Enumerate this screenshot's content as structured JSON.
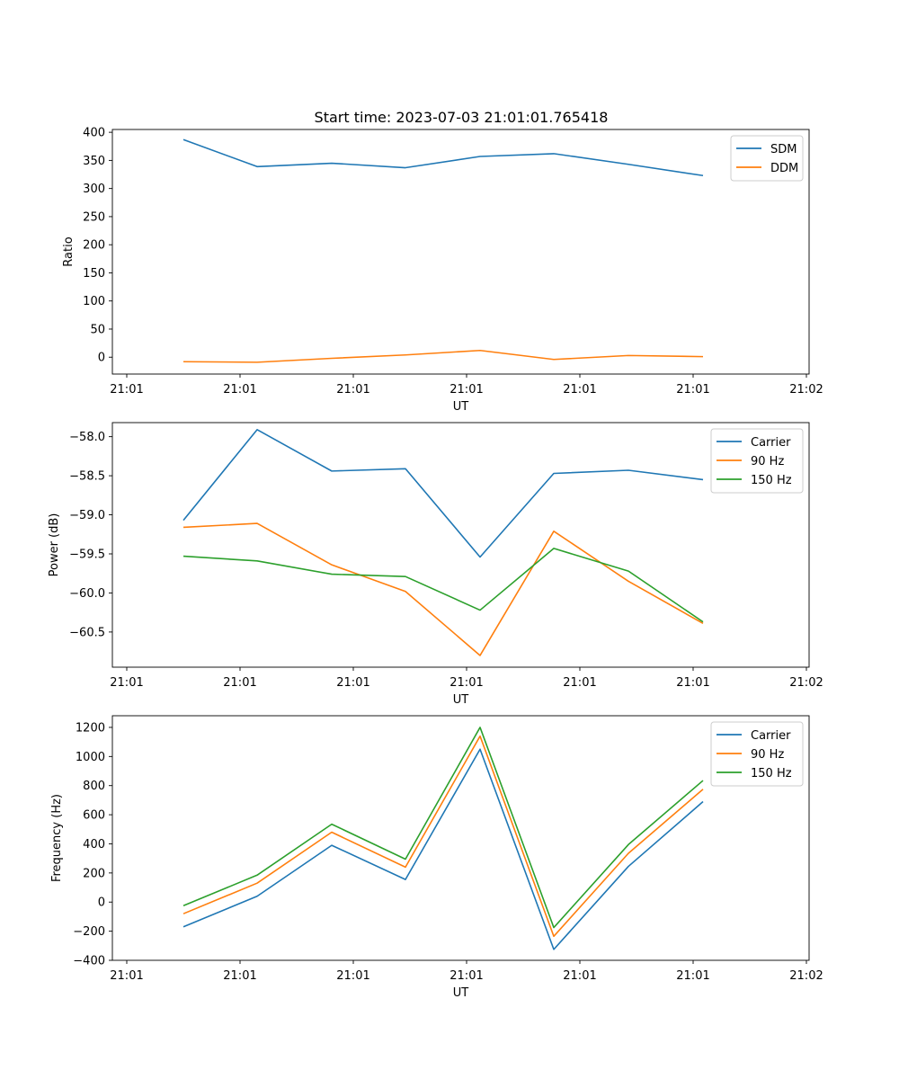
{
  "chart_data": [
    {
      "type": "line",
      "title": "Start time: 2023-07-03 21:01:01.765418",
      "xlabel": "UT",
      "ylabel": "Ratio",
      "xtick_labels": [
        "21:01",
        "21:01",
        "21:01",
        "21:01",
        "21:01",
        "21:01",
        "21:02"
      ],
      "ylim": [
        -30,
        405
      ],
      "yticks": [
        0,
        50,
        100,
        150,
        200,
        250,
        300,
        350,
        400
      ],
      "ytick_labels": [
        "0",
        "50",
        "100",
        "150",
        "200",
        "250",
        "300",
        "350",
        "400"
      ],
      "grid": false,
      "legend_position": "top-right",
      "series": [
        {
          "name": "SDM",
          "color": "#1f77b4",
          "values": [
            387,
            339,
            345,
            337,
            357,
            362,
            343,
            323
          ]
        },
        {
          "name": "DDM",
          "color": "#ff7f0e",
          "values": [
            -8,
            -9,
            -2,
            4,
            12,
            -4,
            3,
            1
          ]
        }
      ]
    },
    {
      "type": "line",
      "title": "",
      "xlabel": "UT",
      "ylabel": "Power (dB)",
      "xtick_labels": [
        "21:01",
        "21:01",
        "21:01",
        "21:01",
        "21:01",
        "21:01",
        "21:02"
      ],
      "ylim": [
        -60.95,
        -57.82
      ],
      "yticks": [
        -58.0,
        -58.5,
        -59.0,
        -59.5,
        -60.0,
        -60.5
      ],
      "ytick_labels": [
        "−58.0",
        "−58.5",
        "−59.0",
        "−59.5",
        "−60.0",
        "−60.5"
      ],
      "grid": false,
      "legend_position": "top-right",
      "series": [
        {
          "name": "Carrier",
          "color": "#1f77b4",
          "values": [
            -59.07,
            -57.91,
            -58.44,
            -58.41,
            -59.54,
            -58.47,
            -58.43,
            -58.55
          ]
        },
        {
          "name": "90 Hz",
          "color": "#ff7f0e",
          "values": [
            -59.16,
            -59.11,
            -59.64,
            -59.98,
            -60.8,
            -59.21,
            -59.85,
            -60.39
          ]
        },
        {
          "name": "150 Hz",
          "color": "#2ca02c",
          "values": [
            -59.53,
            -59.59,
            -59.76,
            -59.79,
            -60.22,
            -59.43,
            -59.72,
            -60.37
          ]
        }
      ]
    },
    {
      "type": "line",
      "title": "",
      "xlabel": "UT",
      "ylabel": "Frequency (Hz)",
      "xtick_labels": [
        "21:01",
        "21:01",
        "21:01",
        "21:01",
        "21:01",
        "21:01",
        "21:02"
      ],
      "ylim": [
        -400,
        1280
      ],
      "yticks": [
        -400,
        -200,
        0,
        200,
        400,
        600,
        800,
        1000,
        1200
      ],
      "ytick_labels": [
        "−400",
        "−200",
        "0",
        "200",
        "400",
        "600",
        "800",
        "1000",
        "1200"
      ],
      "grid": false,
      "legend_position": "top-right",
      "series": [
        {
          "name": "Carrier",
          "color": "#1f77b4",
          "values": [
            -170,
            40,
            390,
            155,
            1050,
            -325,
            245,
            690
          ]
        },
        {
          "name": "90 Hz",
          "color": "#ff7f0e",
          "values": [
            -80,
            130,
            480,
            240,
            1140,
            -235,
            335,
            775
          ]
        },
        {
          "name": "150 Hz",
          "color": "#2ca02c",
          "values": [
            -25,
            185,
            535,
            295,
            1200,
            -175,
            395,
            835
          ]
        }
      ]
    }
  ]
}
